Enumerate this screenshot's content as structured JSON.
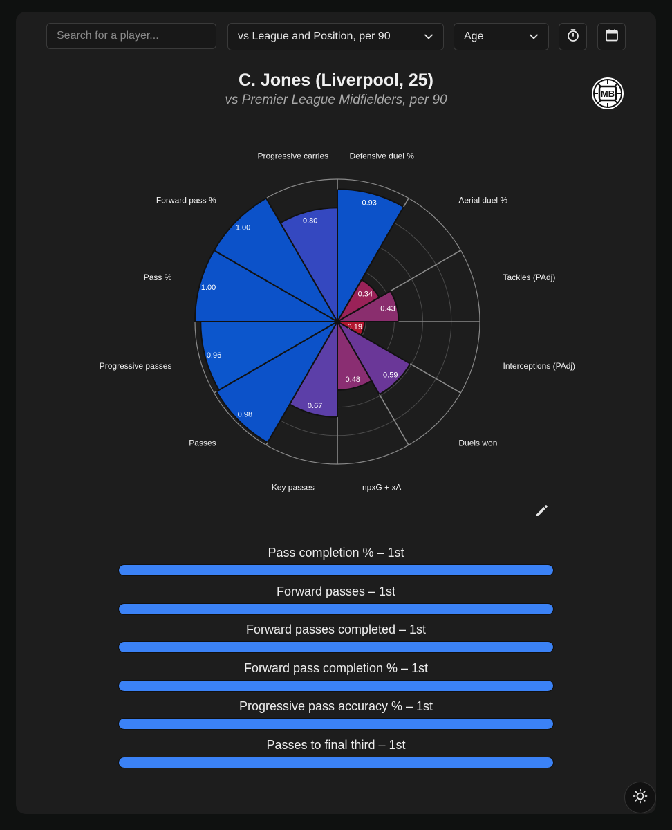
{
  "search": {
    "placeholder": "Search for a player..."
  },
  "comparison_select": {
    "value": "vs League and Position, per 90"
  },
  "filter_select": {
    "value": "Age"
  },
  "header": {
    "title": "C. Jones (Liverpool, 25)",
    "subtitle": "vs Premier League Midfielders, per 90",
    "logo_text": "MB"
  },
  "chart_data": {
    "type": "polar-bar",
    "categories": [
      "Defensive duel %",
      "Aerial duel %",
      "Tackles (PAdj)",
      "Interceptions (PAdj)",
      "Duels won",
      "npxG + xA",
      "Key passes",
      "Passes",
      "Progressive passes",
      "Pass %",
      "Forward pass %",
      "Progressive carries"
    ],
    "values": [
      0.93,
      0.34,
      0.43,
      0.19,
      0.59,
      0.48,
      0.67,
      0.98,
      0.96,
      1.0,
      1.0,
      0.8
    ],
    "value_labels": [
      "0.93",
      "0.34",
      "0.43",
      "0.19",
      "0.59",
      "0.48",
      "0.67",
      "0.98",
      "0.96",
      "1.00",
      "1.00",
      "0.80"
    ],
    "colors": [
      "#0c52c9",
      "#9a2258",
      "#8a2e6e",
      "#b0162e",
      "#6a3798",
      "#8a2e72",
      "#5c3fa8",
      "#0c52c9",
      "#0c56cc",
      "#0c52c9",
      "#0c52c9",
      "#3448c0"
    ],
    "range": [
      0,
      1
    ],
    "grid": true
  },
  "percentile_bars": [
    {
      "label": "Pass completion % – 1st",
      "value": 1.0
    },
    {
      "label": "Forward passes – 1st",
      "value": 1.0
    },
    {
      "label": "Forward passes completed – 1st",
      "value": 1.0
    },
    {
      "label": "Forward pass completion % – 1st",
      "value": 1.0
    },
    {
      "label": "Progressive pass accuracy % – 1st",
      "value": 1.0
    },
    {
      "label": "Passes to final third – 1st",
      "value": 1.0
    }
  ],
  "icons": {
    "chevron": "chevron-down-icon",
    "timer": "stopwatch-icon",
    "calendar": "calendar-icon",
    "edit": "pencil-icon",
    "theme": "sun-icon"
  }
}
